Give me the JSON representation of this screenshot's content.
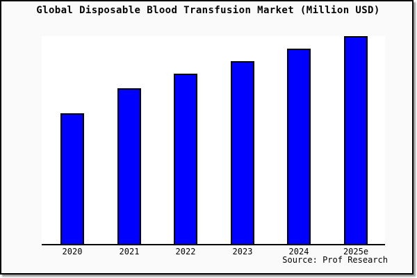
{
  "title": "Global Disposable Blood Transfusion Market (Million USD)",
  "source_credit": "Source: Prof Research",
  "colors": {
    "bar_fill": "#0000ff",
    "bar_border": "#000000",
    "figure_background": "#fafafa",
    "plot_background": "#ffffff",
    "frame_border": "#000000",
    "text": "#000000"
  },
  "chart_data": {
    "type": "bar",
    "title": "Global Disposable Blood Transfusion Market (Million USD)",
    "categories": [
      "2020",
      "2021",
      "2022",
      "2023",
      "2024",
      "2025e"
    ],
    "values": [
      63,
      75,
      82,
      88,
      94,
      100
    ],
    "value_note": "y-axis has no tick labels in the image; values are relative heights estimated from pixels, indexed so 2025e = 100 (bar tops ~189/226/246/264/282/301 px above baseline)",
    "xlabel": "",
    "ylabel": "",
    "ylim": [
      0,
      100
    ],
    "grid": false,
    "legend": null,
    "annotations": [
      "Source: Prof Research"
    ]
  }
}
